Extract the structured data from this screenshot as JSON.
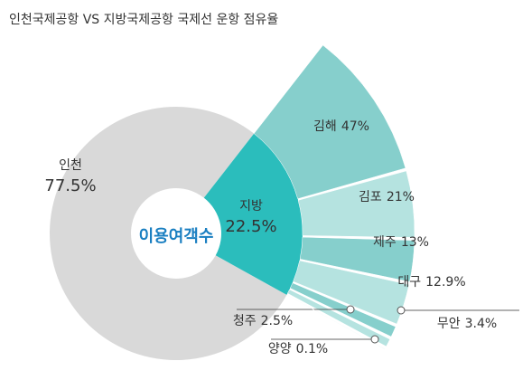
{
  "chart_data": {
    "type": "pie",
    "title": "인천국제공항 VS 지방국제공항 국제선 운항 점유율",
    "center_label": "이용여객수",
    "categories": [
      "인천",
      "지방"
    ],
    "values": [
      77.5,
      22.5
    ],
    "value_labels": [
      "77.5%",
      "22.5%"
    ],
    "colors": [
      "#d9d9d9",
      "#2bbdbc"
    ],
    "breakdown": {
      "categories": [
        "김해",
        "김포",
        "제주",
        "대구",
        "무안",
        "청주",
        "양양"
      ],
      "values": [
        47,
        21,
        13,
        12.9,
        3.4,
        2.5,
        0.1
      ],
      "value_labels": [
        "47%",
        "21%",
        "13%",
        "12.9%",
        "3.4%",
        "2.5%",
        "0.1%"
      ],
      "colors": [
        "#86cfcc",
        "#b5e3e0",
        "#86cfcc",
        "#b5e3e0",
        "#86cfcc",
        "#b5e3e0",
        "#86cfcc"
      ]
    }
  }
}
